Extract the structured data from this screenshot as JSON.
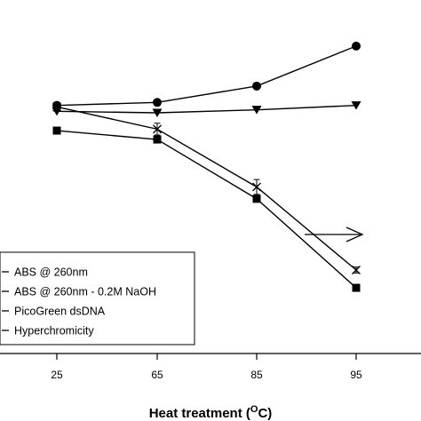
{
  "chart_data": {
    "type": "line",
    "categories": [
      "25",
      "65",
      "85",
      "95"
    ],
    "xlabel": "Heat treatment",
    "xlabel_sup": "O",
    "xlabel_unit": "C",
    "ylim": [
      0,
      10
    ],
    "grid": false,
    "legend_position": "bottom-left",
    "series": [
      {
        "name": "ABS @ 260nm",
        "marker": "circle",
        "values": [
          7.75,
          7.85,
          8.4,
          9.75
        ]
      },
      {
        "name": "ABS @ 260nm - 0.2M NaOH",
        "marker": "x",
        "values": [
          7.7,
          6.95,
          5.0,
          2.2
        ],
        "errors": [
          0.15,
          0.2,
          0.25,
          0.1
        ]
      },
      {
        "name": "PicoGreen dsDNA",
        "marker": "triangle-down",
        "values": [
          7.55,
          7.5,
          7.6,
          7.75
        ]
      },
      {
        "name": "Hyperchromicity",
        "marker": "square",
        "values": [
          6.9,
          6.6,
          4.6,
          1.6
        ]
      }
    ]
  }
}
